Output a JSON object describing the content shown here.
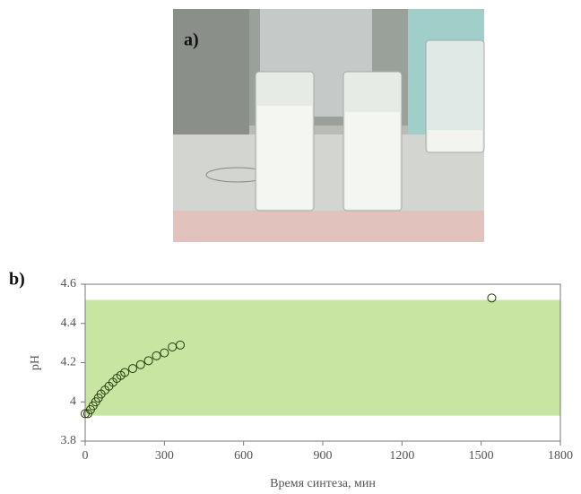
{
  "photo": {
    "label": "a)"
  },
  "chart_data": {
    "type": "scatter",
    "panel_label": "b)",
    "x_label": "Время синтеза, мин",
    "y_label": "pH",
    "x": [
      0,
      10,
      20,
      30,
      40,
      50,
      60,
      75,
      90,
      105,
      120,
      135,
      150,
      180,
      210,
      240,
      270,
      300,
      330,
      360,
      1540
    ],
    "values": [
      3.94,
      3.94,
      3.96,
      3.98,
      4.0,
      4.02,
      4.04,
      4.06,
      4.08,
      4.1,
      4.12,
      4.135,
      4.15,
      4.17,
      4.19,
      4.21,
      4.235,
      4.25,
      4.28,
      4.29,
      4.53
    ],
    "color": "#2a3a10",
    "xlim": [
      0,
      1800
    ],
    "xticks": [
      0,
      300,
      600,
      900,
      1200,
      1500,
      1800
    ],
    "ylim": [
      3.8,
      4.6
    ],
    "yticks": [
      3.8,
      4,
      4.2,
      4.4,
      4.6
    ],
    "shaded_band": {
      "ymin": 3.93,
      "ymax": 4.52,
      "color": "#c8e6a2"
    }
  }
}
